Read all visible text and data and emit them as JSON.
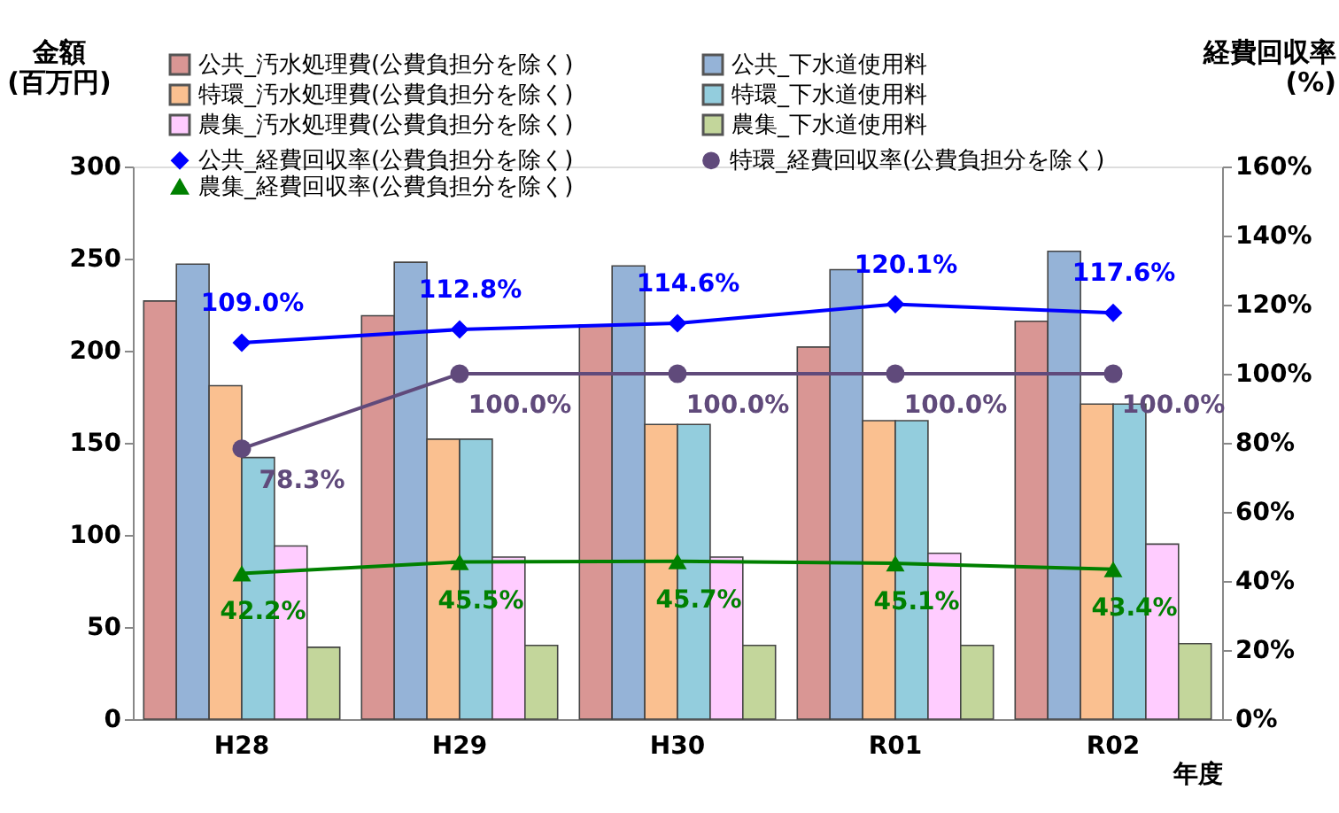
{
  "chart_data": {
    "type": "bar",
    "categories": [
      "H28",
      "H29",
      "H30",
      "R01",
      "R02"
    ],
    "xlabel": "年度",
    "ylabel": "金額\n(百万円)",
    "y2label": "経費回収率\n(%)",
    "ylim": [
      0,
      300
    ],
    "yticks": [
      0,
      50,
      100,
      150,
      200,
      250,
      300
    ],
    "y2lim": [
      0,
      160
    ],
    "y2ticks": [
      {
        "value": 0,
        "label": "0%"
      },
      {
        "value": 20,
        "label": "20%"
      },
      {
        "value": 40,
        "label": "40%"
      },
      {
        "value": 60,
        "label": "60%"
      },
      {
        "value": 80,
        "label": "80%"
      },
      {
        "value": 100,
        "label": "100%"
      },
      {
        "value": 120,
        "label": "120%"
      },
      {
        "value": 140,
        "label": "140%"
      },
      {
        "value": 160,
        "label": "160%"
      }
    ],
    "grid": false,
    "legend": "top",
    "series": [
      {
        "name": "公共_汚水処理費(公費負担分を除く)",
        "type": "bar",
        "color": "#d99694",
        "values": [
          227,
          219,
          214,
          202,
          216
        ]
      },
      {
        "name": "公共_下水道使用料",
        "type": "bar",
        "color": "#95b3d7",
        "values": [
          247,
          248,
          246,
          244,
          254
        ]
      },
      {
        "name": "特環_汚水処理費(公費負担分を除く)",
        "type": "bar",
        "color": "#fac090",
        "values": [
          181,
          152,
          160,
          162,
          171
        ]
      },
      {
        "name": "特環_下水道使用料",
        "type": "bar",
        "color": "#93cddd",
        "values": [
          142,
          152,
          160,
          162,
          171
        ]
      },
      {
        "name": "農集_汚水処理費(公費負担分を除く)",
        "type": "bar",
        "color": "#ffccff",
        "values": [
          94,
          88,
          88,
          90,
          95
        ]
      },
      {
        "name": "農集_下水道使用料",
        "type": "bar",
        "color": "#c3d69b",
        "values": [
          39,
          40,
          40,
          40,
          41
        ]
      },
      {
        "name": "公共_経費回収率(公費負担分を除く)",
        "type": "line",
        "axis": "y2",
        "marker": "diamond",
        "color": "#0000ff",
        "values": [
          109.0,
          112.8,
          114.6,
          120.1,
          117.6
        ],
        "value_labels": [
          "109.0%",
          "112.8%",
          "114.6%",
          "120.1%",
          "117.6%"
        ]
      },
      {
        "name": "特環_経費回収率(公費負担分を除く)",
        "type": "line",
        "axis": "y2",
        "marker": "circle",
        "color": "#604a7b",
        "values": [
          78.3,
          100.0,
          100.0,
          100.0,
          100.0
        ],
        "value_labels": [
          "78.3%",
          "100.0%",
          "100.0%",
          "100.0%",
          "100.0%"
        ]
      },
      {
        "name": "農集_経費回収率(公費負担分を除く)",
        "type": "line",
        "axis": "y2",
        "marker": "triangle",
        "color": "#008000",
        "values": [
          42.2,
          45.5,
          45.7,
          45.1,
          43.4
        ],
        "value_labels": [
          "42.2%",
          "45.5%",
          "45.7%",
          "45.1%",
          "43.4%"
        ]
      }
    ]
  }
}
